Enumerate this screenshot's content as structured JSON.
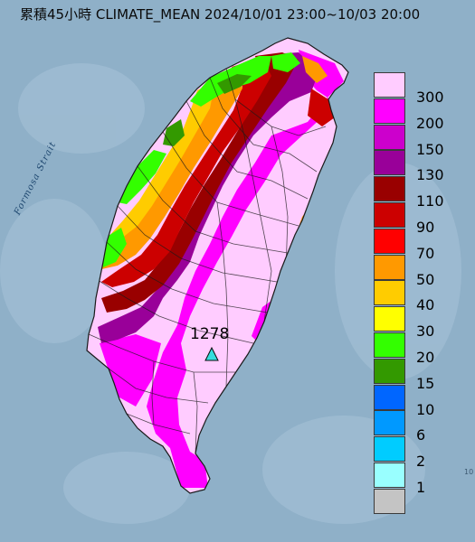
{
  "map": {
    "title": "累積45小時 CLIMATE_MEAN 2024/10/01 23:00~10/03 20:00",
    "water_label": "Formosa Strait",
    "peak": {
      "value": "1278",
      "marker": "triangle-icon",
      "marker_color": "#33dddd"
    },
    "edge_note": "10"
  },
  "legend": {
    "items": [
      {
        "label": "300",
        "color": "#ffccff"
      },
      {
        "label": "200",
        "color": "#ff00ff"
      },
      {
        "label": "150",
        "color": "#cc00cc"
      },
      {
        "label": "130",
        "color": "#990099"
      },
      {
        "label": "110",
        "color": "#990000"
      },
      {
        "label": "90",
        "color": "#cc0000"
      },
      {
        "label": "70",
        "color": "#ff0000"
      },
      {
        "label": "50",
        "color": "#ff9900"
      },
      {
        "label": "40",
        "color": "#ffcc00"
      },
      {
        "label": "30",
        "color": "#ffff00"
      },
      {
        "label": "20",
        "color": "#33ff00"
      },
      {
        "label": "15",
        "color": "#339900"
      },
      {
        "label": "10",
        "color": "#0066ff"
      },
      {
        "label": "6",
        "color": "#0099ff"
      },
      {
        "label": "2",
        "color": "#00ccff"
      },
      {
        "label": "1",
        "color": "#99ffff"
      },
      {
        "label": "",
        "color": "#c4c4c4"
      }
    ]
  },
  "colors": {
    "sea": "#8fb0c8",
    "sea_light": "#a7c3d8",
    "boundary": "#1a1a1a"
  }
}
